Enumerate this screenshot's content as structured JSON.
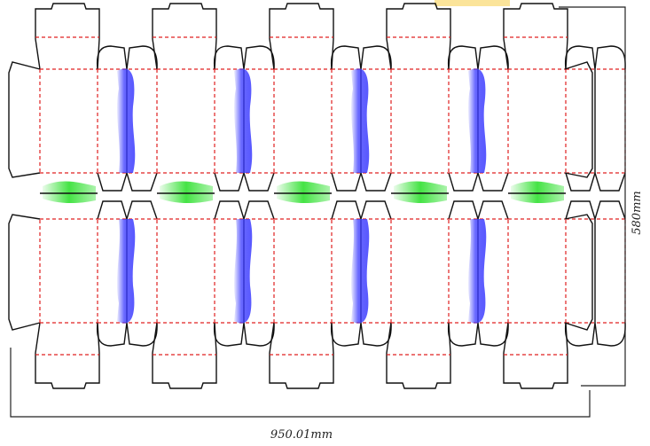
{
  "dimensions": {
    "width": "950.01mm",
    "height": "580mm"
  }
}
